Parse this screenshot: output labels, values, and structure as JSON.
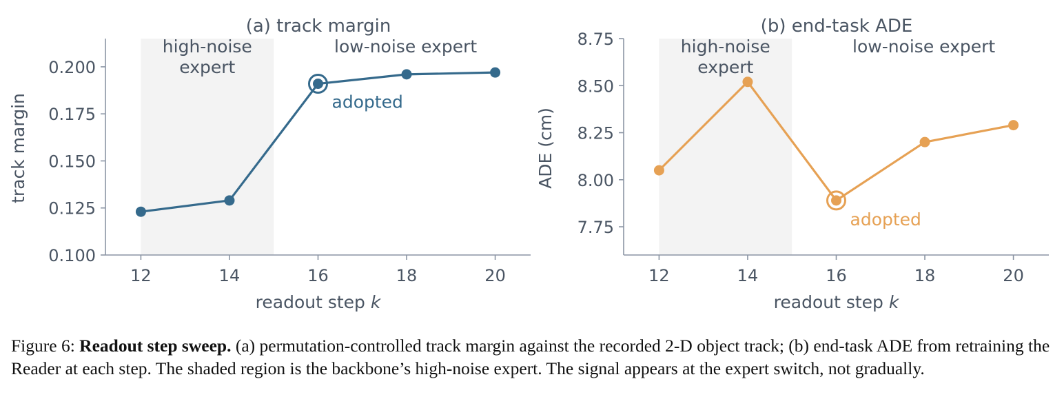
{
  "chart_data": [
    {
      "type": "line",
      "title": "(a) track margin",
      "xlabel": "readout step",
      "xlabel_var": "k",
      "ylabel": "track margin",
      "x": [
        12,
        14,
        16,
        18,
        20
      ],
      "xticks": [
        "12",
        "14",
        "16",
        "18",
        "20"
      ],
      "xlim": [
        11.2,
        20.8
      ],
      "ylim": [
        0.1,
        0.215
      ],
      "yticks": [
        "0.100",
        "0.125",
        "0.150",
        "0.175",
        "0.200"
      ],
      "series": [
        {
          "values": [
            0.123,
            0.129,
            0.191,
            0.196,
            0.197
          ],
          "color": "#356a8c"
        }
      ],
      "shaded_region": {
        "x": [
          12,
          15
        ],
        "label_lines": [
          "high-noise",
          "expert"
        ],
        "color": "#f3f3f3"
      },
      "region_labels": [
        "low-noise expert"
      ],
      "highlight": {
        "x": 16,
        "y": 0.191,
        "label": "adopted"
      }
    },
    {
      "type": "line",
      "title": "(b) end-task ADE",
      "xlabel": "readout step",
      "xlabel_var": "k",
      "ylabel": "ADE (cm)",
      "x": [
        12,
        14,
        16,
        18,
        20
      ],
      "xticks": [
        "12",
        "14",
        "16",
        "18",
        "20"
      ],
      "xlim": [
        11.2,
        20.8
      ],
      "ylim": [
        7.6,
        8.75
      ],
      "yticks": [
        "7.75",
        "8.00",
        "8.25",
        "8.50",
        "8.75"
      ],
      "series": [
        {
          "values": [
            8.05,
            8.52,
            7.89,
            8.2,
            8.29
          ],
          "color": "#e6a154"
        }
      ],
      "shaded_region": {
        "x": [
          12,
          15
        ],
        "label_lines": [
          "high-noise",
          "expert"
        ],
        "color": "#f3f3f3"
      },
      "region_labels": [
        "low-noise expert"
      ],
      "highlight": {
        "x": 16,
        "y": 7.89,
        "label": "adopted"
      }
    }
  ],
  "caption": {
    "figure_label": "Figure 6:",
    "bold_title": "Readout step sweep.",
    "text": "(a) permutation-controlled track margin against the recorded 2-D object track; (b) end-task ADE from retraining the Reader at each step. The shaded region is the backbone’s high-noise expert. The signal appears at the expert switch, not gradually."
  }
}
